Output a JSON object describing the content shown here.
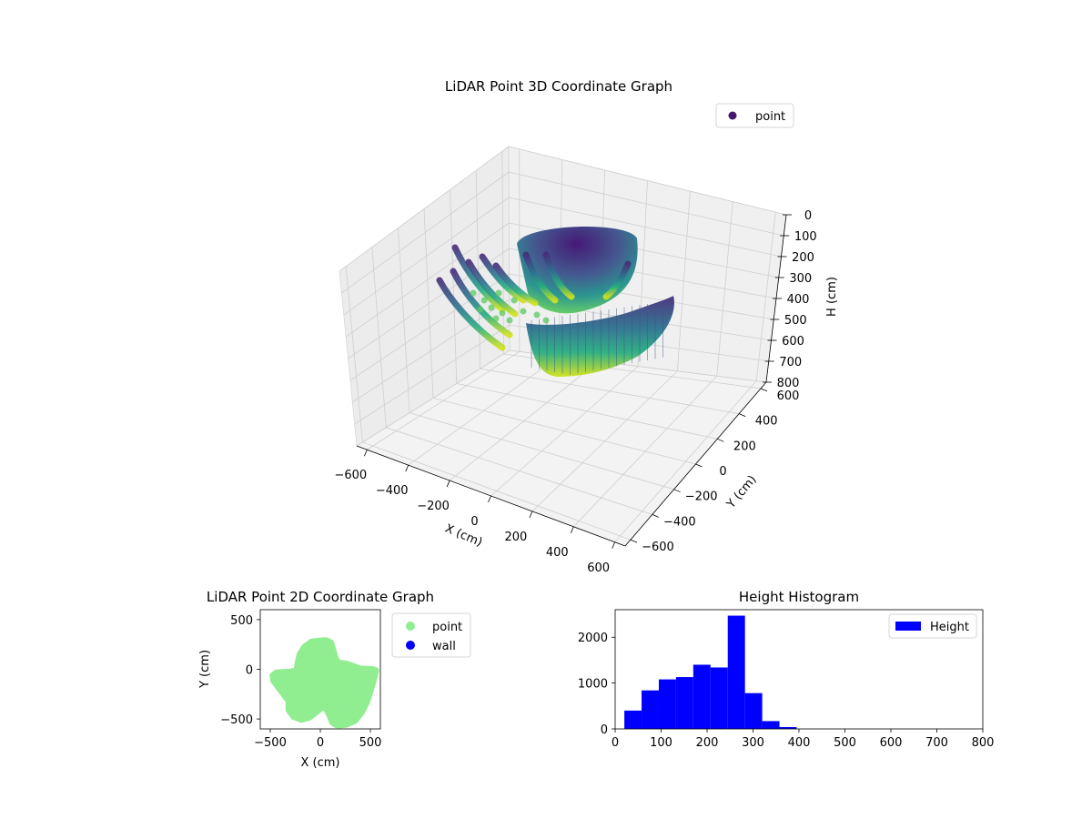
{
  "chart_data": [
    {
      "type": "scatter",
      "title": "LiDAR Point 3D Coordinate Graph",
      "xlabel": "X (cm)",
      "ylabel": "Y (cm)",
      "zlabel": "H (cm)",
      "xlim": [
        -650,
        650
      ],
      "ylim": [
        -650,
        650
      ],
      "zlim": [
        0,
        800
      ],
      "z_inverted": true,
      "xticks": [
        -600,
        -400,
        -200,
        0,
        200,
        400,
        600
      ],
      "yticks": [
        -600,
        -400,
        -200,
        0,
        200,
        400,
        600
      ],
      "zticks": [
        0,
        100,
        200,
        300,
        400,
        500,
        600,
        700,
        800
      ],
      "colormap": "viridis",
      "legend": {
        "placement": "top-right",
        "entries": [
          {
            "label": "point",
            "color": "#46176b"
          }
        ]
      },
      "series": [
        {
          "name": "point",
          "description_shape": "wall/arc strips of points colored by height"
        }
      ],
      "grid": true
    },
    {
      "type": "scatter",
      "title": "LiDAR Point 2D Coordinate Graph",
      "xlabel": "X (cm)",
      "ylabel": "Y (cm)",
      "xlim": [
        -600,
        600
      ],
      "ylim": [
        -600,
        600
      ],
      "xticks": [
        -500,
        0,
        500
      ],
      "yticks": [
        -500,
        0,
        500
      ],
      "legend": {
        "placement": "outside-right",
        "entries": [
          {
            "label": "point",
            "color": "#90ee90"
          },
          {
            "label": "wall",
            "color": "#0000ff"
          }
        ]
      },
      "series": [
        {
          "name": "point",
          "color": "#90ee90",
          "outline": [
            [
              -20,
              290
            ],
            [
              60,
              295
            ],
            [
              110,
              270
            ],
            [
              130,
              200
            ],
            [
              155,
              110
            ],
            [
              180,
              70
            ],
            [
              260,
              60
            ],
            [
              400,
              10
            ],
            [
              520,
              5
            ],
            [
              560,
              -10
            ],
            [
              545,
              -80
            ],
            [
              510,
              -200
            ],
            [
              470,
              -330
            ],
            [
              420,
              -430
            ],
            [
              350,
              -520
            ],
            [
              260,
              -560
            ],
            [
              170,
              -570
            ],
            [
              120,
              -540
            ],
            [
              90,
              -470
            ],
            [
              40,
              -370
            ],
            [
              -20,
              -420
            ],
            [
              -110,
              -490
            ],
            [
              -190,
              -510
            ],
            [
              -270,
              -480
            ],
            [
              -320,
              -410
            ],
            [
              -320,
              -320
            ],
            [
              -410,
              -200
            ],
            [
              -470,
              -120
            ],
            [
              -480,
              -60
            ],
            [
              -440,
              -30
            ],
            [
              -300,
              -20
            ],
            [
              -240,
              -10
            ],
            [
              -230,
              60
            ],
            [
              -210,
              150
            ],
            [
              -160,
              230
            ],
            [
              -90,
              280
            ]
          ]
        },
        {
          "name": "wall",
          "color": "#0000ff",
          "points": []
        }
      ],
      "grid": false
    },
    {
      "type": "bar",
      "title": "Height Histogram",
      "xlim": [
        0,
        800
      ],
      "ylim": [
        0,
        2600
      ],
      "xticks": [
        0,
        100,
        200,
        300,
        400,
        500,
        600,
        700,
        800
      ],
      "yticks": [
        0,
        1000,
        2000
      ],
      "bin_edges": [
        20,
        57.5,
        95,
        132.5,
        170,
        207.5,
        245,
        282.5,
        320,
        357.5,
        395,
        432.5,
        470,
        507.5,
        545,
        582.5,
        620,
        657.5,
        695,
        732.5,
        770
      ],
      "values": [
        400,
        840,
        1080,
        1130,
        1400,
        1340,
        2470,
        780,
        170,
        40,
        0,
        0,
        0,
        0,
        0,
        0,
        0,
        0,
        0,
        0
      ],
      "color": "#0000ff",
      "legend": {
        "placement": "top-right",
        "entries": [
          {
            "label": "Height",
            "color": "#0000ff"
          }
        ]
      },
      "grid": false
    }
  ]
}
